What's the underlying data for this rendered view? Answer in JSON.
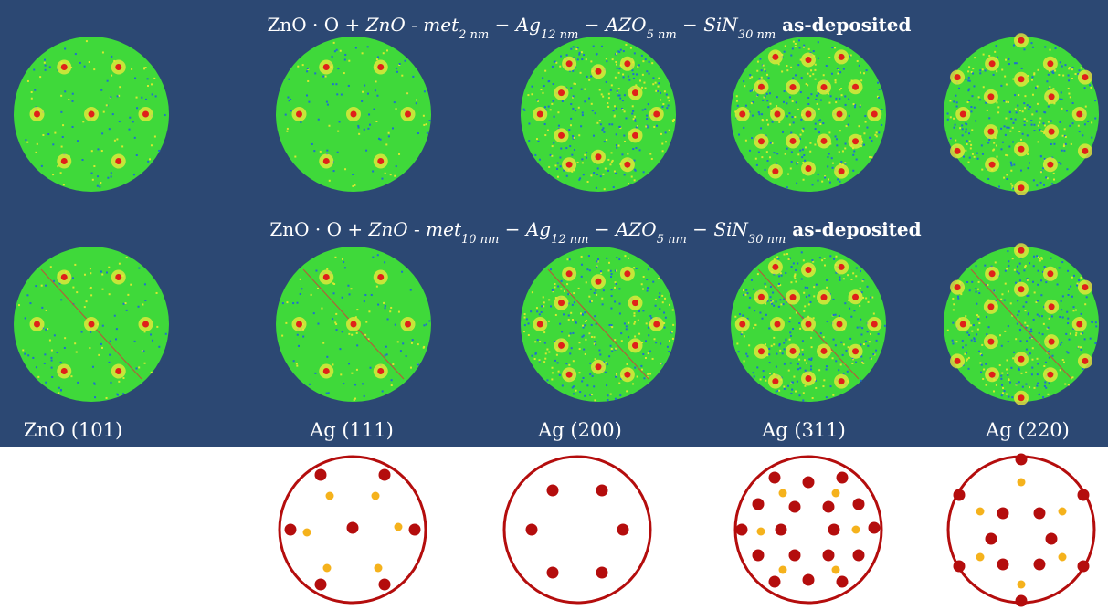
{
  "titles": [
    [
      {
        "text": "ZnO · O + ",
        "style": "normal"
      },
      {
        "text": "ZnO",
        "style": "italic"
      },
      {
        "text": " - ",
        "style": "normal"
      },
      {
        "text": "met",
        "style": "italic"
      },
      {
        "text": "2 nm",
        "style": "sub"
      },
      {
        "text": " − ",
        "style": "normal"
      },
      {
        "text": "Ag",
        "style": "italic"
      },
      {
        "text": "12 nm",
        "style": "sub"
      },
      {
        "text": " − ",
        "style": "normal"
      },
      {
        "text": "AZO",
        "style": "italic"
      },
      {
        "text": "5 nm",
        "style": "sub"
      },
      {
        "text": " − ",
        "style": "normal"
      },
      {
        "text": "SiN",
        "style": "italic"
      },
      {
        "text": "30 nm",
        "style": "sub"
      },
      {
        "text": " as-deposited",
        "style": "bold"
      }
    ],
    [
      {
        "text": "ZnO · O + ",
        "style": "normal"
      },
      {
        "text": "ZnO",
        "style": "italic"
      },
      {
        "text": " - ",
        "style": "normal"
      },
      {
        "text": "met",
        "style": "italic"
      },
      {
        "text": "10 nm",
        "style": "sub"
      },
      {
        "text": " − ",
        "style": "normal"
      },
      {
        "text": "Ag",
        "style": "italic"
      },
      {
        "text": "12 nm",
        "style": "sub"
      },
      {
        "text": " − ",
        "style": "normal"
      },
      {
        "text": "AZO",
        "style": "italic"
      },
      {
        "text": "5 nm",
        "style": "sub"
      },
      {
        "text": " − ",
        "style": "normal"
      },
      {
        "text": "SiN",
        "style": "italic"
      },
      {
        "text": "30 nm",
        "style": "sub"
      },
      {
        "text": " as-deposited",
        "style": "bold"
      }
    ]
  ],
  "labels": [
    "ZnO (101)",
    "Ag (111)",
    "Ag (200)",
    "Ag (311)",
    "Ag (220)"
  ]
}
